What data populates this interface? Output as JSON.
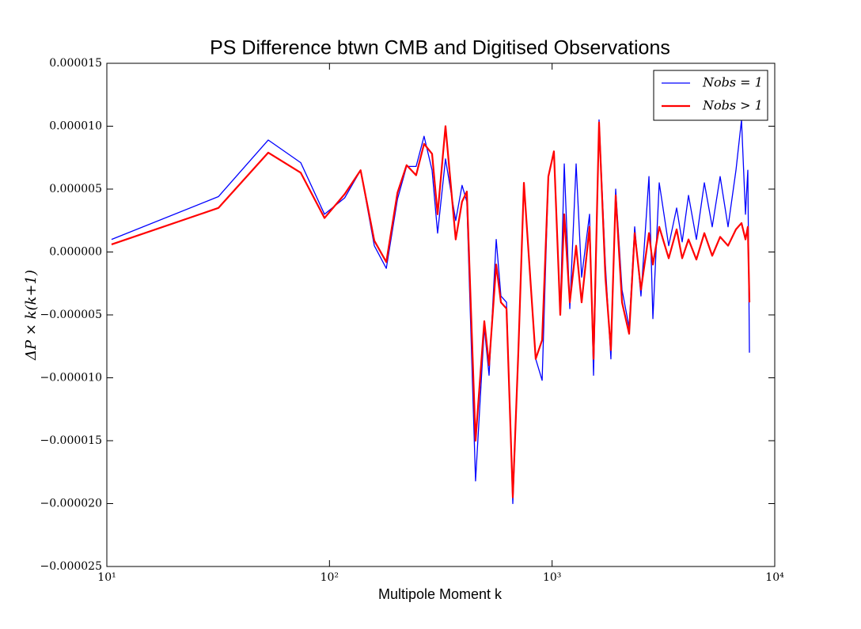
{
  "chart_data": {
    "type": "line",
    "title": "PS Difference btwn CMB and Digitised Observations",
    "xlabel": "Multipole Moment k",
    "ylabel": "ΔP × k(k+1)",
    "xscale": "log",
    "xlim": [
      10,
      10000
    ],
    "xticks": [
      {
        "value": 10,
        "label": "10¹"
      },
      {
        "value": 100,
        "label": "10²"
      },
      {
        "value": 1000,
        "label": "10³"
      },
      {
        "value": 10000,
        "label": "10⁴"
      }
    ],
    "ylim": [
      -2.5e-05,
      1.5e-05
    ],
    "yticks": [
      {
        "value": -2.5e-05,
        "label": "−0.000025"
      },
      {
        "value": -2e-05,
        "label": "−0.000020"
      },
      {
        "value": -1.5e-05,
        "label": "−0.000015"
      },
      {
        "value": -1e-05,
        "label": "−0.000010"
      },
      {
        "value": -5e-06,
        "label": "−0.000005"
      },
      {
        "value": 0,
        "label": "0.000000"
      },
      {
        "value": 5e-06,
        "label": "0.000005"
      },
      {
        "value": 1e-05,
        "label": "0.000010"
      },
      {
        "value": 1.5e-05,
        "label": "0.000015"
      }
    ],
    "legend": "upper right",
    "x": [
      10.5,
      31.7,
      53.1,
      74.3,
      95,
      117,
      138,
      159,
      180,
      202,
      222,
      245,
      266,
      289,
      306,
      332,
      369,
      394,
      414,
      453,
      496,
      521,
      561,
      589,
      624,
      666,
      705,
      747,
      844,
      902,
      962,
      1019,
      1088,
      1134,
      1201,
      1282,
      1357,
      1473,
      1535,
      1625,
      1735,
      1837,
      1930,
      2061,
      2218,
      2349,
      2507,
      2723,
      2836,
      3028,
      3340,
      3625,
      3839,
      4099,
      4447,
      4828,
      5238,
      5685,
      6170,
      6696,
      7091,
      7389,
      7570,
      7697
    ],
    "series": [
      {
        "name": "Nobs = 1",
        "color": "#0000ff",
        "values": [
          1e-06,
          4.4e-06,
          8.9e-06,
          7.1e-06,
          3e-06,
          4.3e-06,
          6.5e-06,
          5e-07,
          -1.3e-06,
          4.2e-06,
          6.8e-06,
          6.8e-06,
          9.2e-06,
          6.5e-06,
          1.5e-06,
          7.4e-06,
          2.5e-06,
          5.3e-06,
          4e-06,
          -1.82e-05,
          -6e-06,
          -9.8e-06,
          1e-06,
          -3.5e-06,
          -4e-06,
          -2e-05,
          -8e-06,
          5.5e-06,
          -8.5e-06,
          -1.02e-05,
          6e-06,
          8e-06,
          -5e-06,
          7e-06,
          -4.5e-06,
          7e-06,
          -2e-06,
          3e-06,
          -9.8e-06,
          1.05e-05,
          -1e-06,
          -8.5e-06,
          5e-06,
          -3e-06,
          -6e-06,
          2e-06,
          -3.5e-06,
          6e-06,
          -5.3e-06,
          5.5e-06,
          5e-07,
          3.5e-06,
          8e-07,
          4.5e-06,
          1e-06,
          5.5e-06,
          2e-06,
          6e-06,
          2e-06,
          6.5e-06,
          1.05e-05,
          3e-06,
          6.5e-06,
          -8e-06
        ]
      },
      {
        "name": "Nobs > 1",
        "color": "#ff0000",
        "values": [
          6e-07,
          3.5e-06,
          7.9e-06,
          6.3e-06,
          2.7e-06,
          4.6e-06,
          6.5e-06,
          9e-07,
          -8e-07,
          4.7e-06,
          6.9e-06,
          6.1e-06,
          8.6e-06,
          7.8e-06,
          3e-06,
          1e-05,
          1e-06,
          4e-06,
          4.8e-06,
          -1.5e-05,
          -5.5e-06,
          -9e-06,
          -1e-06,
          -4e-06,
          -4.5e-06,
          -1.95e-05,
          -8e-06,
          5.5e-06,
          -8.5e-06,
          -7e-06,
          6e-06,
          8e-06,
          -5e-06,
          3e-06,
          -4e-06,
          5e-07,
          -4e-06,
          2e-06,
          -8.5e-06,
          1.03e-05,
          -2e-06,
          -7.8e-06,
          4.5e-06,
          -4e-06,
          -6.5e-06,
          1.5e-06,
          -3e-06,
          1.5e-06,
          -1e-06,
          2e-06,
          -5e-07,
          1.8e-06,
          -5e-07,
          1e-06,
          -6e-07,
          1.5e-06,
          -3e-07,
          1.2e-06,
          5e-07,
          1.8e-06,
          2.3e-06,
          1e-06,
          2e-06,
          -4e-06
        ]
      }
    ]
  }
}
